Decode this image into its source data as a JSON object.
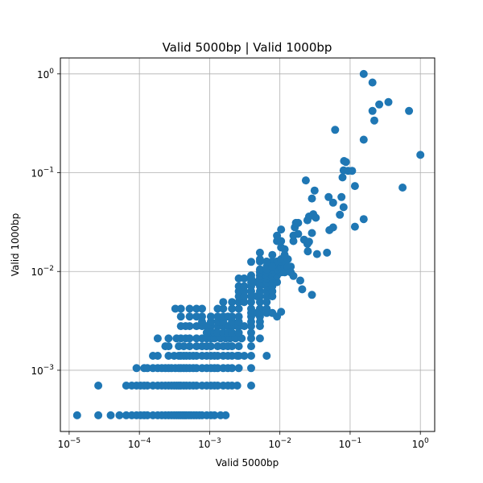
{
  "chart_data": {
    "type": "scatter",
    "title": "Valid 5000bp |  Valid 1000bp",
    "xlabel": "Valid 5000bp",
    "ylabel": "Valid 1000bp",
    "xscale": "log",
    "yscale": "log",
    "xlim": [
      7.5e-06,
      1.6
    ],
    "ylim": [
      0.00024,
      1.45
    ],
    "grid": true,
    "color": "#1f77b4",
    "xticks": [
      {
        "value": 1e-05,
        "base": "10",
        "exp": "−5"
      },
      {
        "value": 0.0001,
        "base": "10",
        "exp": "−4"
      },
      {
        "value": 0.001,
        "base": "10",
        "exp": "−3"
      },
      {
        "value": 0.01,
        "base": "10",
        "exp": "−2"
      },
      {
        "value": 0.1,
        "base": "10",
        "exp": "−1"
      },
      {
        "value": 1,
        "base": "10",
        "exp": "0"
      }
    ],
    "yticks": [
      {
        "value": 0.001,
        "base": "10",
        "exp": "−3"
      },
      {
        "value": 0.01,
        "base": "10",
        "exp": "−2"
      },
      {
        "value": 0.1,
        "base": "10",
        "exp": "−1"
      },
      {
        "value": 1,
        "base": "10",
        "exp": "0"
      }
    ],
    "points": [
      [
        1.3e-05,
        0.00035
      ],
      [
        2.6e-05,
        0.00035
      ],
      [
        2.6e-05,
        0.0007
      ],
      [
        3.9e-05,
        0.00035
      ],
      [
        5.2e-05,
        0.00035
      ],
      [
        6.5e-05,
        0.00035
      ],
      [
        7.8e-05,
        0.00035
      ],
      [
        9.1e-05,
        0.00035
      ],
      [
        0.000104,
        0.00035
      ],
      [
        0.000117,
        0.00035
      ],
      [
        0.00013,
        0.00035
      ],
      [
        0.000156,
        0.00035
      ],
      [
        0.000182,
        0.00035
      ],
      [
        0.000208,
        0.00035
      ],
      [
        0.000234,
        0.00035
      ],
      [
        0.00026,
        0.00035
      ],
      [
        0.000286,
        0.00035
      ],
      [
        0.000312,
        0.00035
      ],
      [
        0.000338,
        0.00035
      ],
      [
        0.000364,
        0.00035
      ],
      [
        0.00039,
        0.00035
      ],
      [
        0.000416,
        0.00035
      ],
      [
        0.000442,
        0.00035
      ],
      [
        0.000468,
        0.00035
      ],
      [
        0.000507,
        0.00035
      ],
      [
        0.000546,
        0.00035
      ],
      [
        0.000598,
        0.00035
      ],
      [
        0.00065,
        0.00035
      ],
      [
        0.000715,
        0.00035
      ],
      [
        0.00078,
        0.00035
      ],
      [
        0.00091,
        0.00035
      ],
      [
        0.00104,
        0.00035
      ],
      [
        0.00117,
        0.00035
      ],
      [
        0.00143,
        0.00035
      ],
      [
        0.00169,
        0.00035
      ],
      [
        6.5e-05,
        0.0007
      ],
      [
        7.8e-05,
        0.0007
      ],
      [
        9.1e-05,
        0.0007
      ],
      [
        0.000104,
        0.0007
      ],
      [
        0.000117,
        0.0007
      ],
      [
        0.00013,
        0.0007
      ],
      [
        0.000156,
        0.0007
      ],
      [
        0.000182,
        0.0007
      ],
      [
        0.000208,
        0.0007
      ],
      [
        0.000234,
        0.0007
      ],
      [
        0.00026,
        0.0007
      ],
      [
        0.000286,
        0.0007
      ],
      [
        0.000312,
        0.0007
      ],
      [
        0.000338,
        0.0007
      ],
      [
        0.000364,
        0.0007
      ],
      [
        0.00039,
        0.0007
      ],
      [
        0.000429,
        0.0007
      ],
      [
        0.000468,
        0.0007
      ],
      [
        0.00052,
        0.0007
      ],
      [
        0.000585,
        0.0007
      ],
      [
        0.00065,
        0.0007
      ],
      [
        0.00078,
        0.0007
      ],
      [
        0.00091,
        0.0007
      ],
      [
        0.00104,
        0.0007
      ],
      [
        0.00117,
        0.0007
      ],
      [
        0.0013,
        0.0007
      ],
      [
        0.00156,
        0.0007
      ],
      [
        0.00182,
        0.0007
      ],
      [
        0.00208,
        0.0007
      ],
      [
        0.00247,
        0.0007
      ],
      [
        0.0039,
        0.0007
      ],
      [
        9.1e-05,
        0.00105
      ],
      [
        0.000117,
        0.00105
      ],
      [
        0.00013,
        0.00105
      ],
      [
        0.000156,
        0.00105
      ],
      [
        0.000182,
        0.00105
      ],
      [
        0.000208,
        0.00105
      ],
      [
        0.000234,
        0.00105
      ],
      [
        0.00026,
        0.00105
      ],
      [
        0.000286,
        0.00105
      ],
      [
        0.000325,
        0.00105
      ],
      [
        0.000364,
        0.00105
      ],
      [
        0.00039,
        0.00105
      ],
      [
        0.000429,
        0.00105
      ],
      [
        0.000468,
        0.00105
      ],
      [
        0.00052,
        0.00105
      ],
      [
        0.000585,
        0.00105
      ],
      [
        0.00065,
        0.00105
      ],
      [
        0.00078,
        0.00105
      ],
      [
        0.00091,
        0.00105
      ],
      [
        0.00104,
        0.00105
      ],
      [
        0.00117,
        0.00105
      ],
      [
        0.0013,
        0.00105
      ],
      [
        0.00156,
        0.00105
      ],
      [
        0.00182,
        0.00105
      ],
      [
        0.00208,
        0.00105
      ],
      [
        0.0026,
        0.00105
      ],
      [
        0.0039,
        0.00105
      ],
      [
        0.000156,
        0.0014
      ],
      [
        0.000182,
        0.0014
      ],
      [
        0.00026,
        0.0014
      ],
      [
        0.000312,
        0.0014
      ],
      [
        0.000364,
        0.0014
      ],
      [
        0.00039,
        0.0014
      ],
      [
        0.000429,
        0.0014
      ],
      [
        0.000468,
        0.0014
      ],
      [
        0.00052,
        0.0014
      ],
      [
        0.000585,
        0.0014
      ],
      [
        0.00065,
        0.0014
      ],
      [
        0.00078,
        0.0014
      ],
      [
        0.00091,
        0.0014
      ],
      [
        0.00104,
        0.0014
      ],
      [
        0.00117,
        0.0014
      ],
      [
        0.0013,
        0.0014
      ],
      [
        0.00156,
        0.0014
      ],
      [
        0.00182,
        0.0014
      ],
      [
        0.00208,
        0.0014
      ],
      [
        0.00247,
        0.0014
      ],
      [
        0.0026,
        0.0014
      ],
      [
        0.00312,
        0.0014
      ],
      [
        0.0039,
        0.0014
      ],
      [
        0.0065,
        0.0014
      ],
      [
        0.000234,
        0.00175
      ],
      [
        0.00026,
        0.00175
      ],
      [
        0.000364,
        0.00175
      ],
      [
        0.000429,
        0.00175
      ],
      [
        0.00052,
        0.00175
      ],
      [
        0.00065,
        0.00175
      ],
      [
        0.00078,
        0.00175
      ],
      [
        0.00091,
        0.00175
      ],
      [
        0.00104,
        0.00175
      ],
      [
        0.0013,
        0.00175
      ],
      [
        0.00156,
        0.00175
      ],
      [
        0.00182,
        0.00175
      ],
      [
        0.00208,
        0.00175
      ],
      [
        0.0026,
        0.00175
      ],
      [
        0.0039,
        0.00175
      ],
      [
        0.000182,
        0.0021
      ],
      [
        0.00026,
        0.0021
      ],
      [
        0.000338,
        0.0021
      ],
      [
        0.00039,
        0.0021
      ],
      [
        0.000455,
        0.0021
      ],
      [
        0.00052,
        0.0021
      ],
      [
        0.00065,
        0.0021
      ],
      [
        0.00078,
        0.0021
      ],
      [
        0.00091,
        0.0021
      ],
      [
        0.00104,
        0.0021
      ],
      [
        0.00117,
        0.0021
      ],
      [
        0.00143,
        0.0021
      ],
      [
        0.00169,
        0.0021
      ],
      [
        0.00195,
        0.0021
      ],
      [
        0.00234,
        0.0021
      ],
      [
        0.00286,
        0.0021
      ],
      [
        0.0039,
        0.0021
      ],
      [
        0.0052,
        0.0021
      ],
      [
        0.00039,
        0.0028
      ],
      [
        0.000455,
        0.0028
      ],
      [
        0.00052,
        0.0028
      ],
      [
        0.00065,
        0.0028
      ],
      [
        0.00078,
        0.0028
      ],
      [
        0.00091,
        0.0028
      ],
      [
        0.00104,
        0.0028
      ],
      [
        0.0013,
        0.0028
      ],
      [
        0.00156,
        0.0028
      ],
      [
        0.00182,
        0.0028
      ],
      [
        0.00208,
        0.0028
      ],
      [
        0.00247,
        0.0028
      ],
      [
        0.0026,
        0.0028
      ],
      [
        0.00312,
        0.0028
      ],
      [
        0.0039,
        0.0028
      ],
      [
        0.0052,
        0.0028
      ],
      [
        0.00104,
        0.0024
      ],
      [
        0.00117,
        0.0024
      ],
      [
        0.0013,
        0.0024
      ],
      [
        0.00156,
        0.0024
      ],
      [
        0.00182,
        0.0024
      ],
      [
        0.00208,
        0.0024
      ],
      [
        0.0026,
        0.0024
      ],
      [
        0.0039,
        0.0024
      ],
      [
        0.00091,
        0.0024
      ],
      [
        0.00078,
        0.0031
      ],
      [
        0.00104,
        0.0031
      ],
      [
        0.0013,
        0.0031
      ],
      [
        0.00156,
        0.0031
      ],
      [
        0.00208,
        0.0031
      ],
      [
        0.0026,
        0.0031
      ],
      [
        0.0039,
        0.0031
      ],
      [
        0.0052,
        0.0031
      ],
      [
        0.00039,
        0.0035
      ],
      [
        0.00052,
        0.0035
      ],
      [
        0.00065,
        0.0035
      ],
      [
        0.00078,
        0.0035
      ],
      [
        0.00104,
        0.0035
      ],
      [
        0.0013,
        0.0035
      ],
      [
        0.00156,
        0.0035
      ],
      [
        0.00182,
        0.0035
      ],
      [
        0.00208,
        0.0035
      ],
      [
        0.0026,
        0.0035
      ],
      [
        0.0039,
        0.0035
      ],
      [
        0.0052,
        0.0035
      ],
      [
        0.000325,
        0.0042
      ],
      [
        0.00039,
        0.0042
      ],
      [
        0.00052,
        0.0042
      ],
      [
        0.00065,
        0.0042
      ],
      [
        0.00078,
        0.0042
      ],
      [
        0.0013,
        0.0042
      ],
      [
        0.00156,
        0.0042
      ],
      [
        0.00208,
        0.0042
      ],
      [
        0.0026,
        0.0042
      ],
      [
        0.0039,
        0.0042
      ],
      [
        0.0052,
        0.0042
      ],
      [
        0.0065,
        0.0042
      ],
      [
        0.0039,
        0.0038
      ],
      [
        0.0052,
        0.0038
      ],
      [
        0.0065,
        0.0038
      ],
      [
        0.0078,
        0.0038
      ],
      [
        0.0047,
        0.0038
      ],
      [
        0.0091,
        0.0035
      ],
      [
        0.0104,
        0.0039
      ],
      [
        0.00156,
        0.0049
      ],
      [
        0.00208,
        0.0049
      ],
      [
        0.0026,
        0.0049
      ],
      [
        0.0031,
        0.0049
      ],
      [
        0.0039,
        0.0049
      ],
      [
        0.0052,
        0.0049
      ],
      [
        0.0065,
        0.0049
      ],
      [
        0.0026,
        0.0056
      ],
      [
        0.0031,
        0.0056
      ],
      [
        0.0039,
        0.0056
      ],
      [
        0.0047,
        0.0056
      ],
      [
        0.0052,
        0.0056
      ],
      [
        0.0065,
        0.0056
      ],
      [
        0.0078,
        0.0056
      ],
      [
        0.0026,
        0.0063
      ],
      [
        0.0031,
        0.0063
      ],
      [
        0.0039,
        0.0063
      ],
      [
        0.0052,
        0.0063
      ],
      [
        0.0065,
        0.0063
      ],
      [
        0.0078,
        0.0063
      ],
      [
        0.0026,
        0.0071
      ],
      [
        0.0031,
        0.0071
      ],
      [
        0.0039,
        0.0071
      ],
      [
        0.0052,
        0.0071
      ],
      [
        0.0065,
        0.0071
      ],
      [
        0.0078,
        0.0071
      ],
      [
        0.0039,
        0.0078
      ],
      [
        0.0047,
        0.0078
      ],
      [
        0.0052,
        0.0078
      ],
      [
        0.0065,
        0.0078
      ],
      [
        0.0078,
        0.0078
      ],
      [
        0.0091,
        0.0078
      ],
      [
        0.0026,
        0.0085
      ],
      [
        0.0031,
        0.0085
      ],
      [
        0.0039,
        0.0085
      ],
      [
        0.0052,
        0.0085
      ],
      [
        0.0065,
        0.0085
      ],
      [
        0.0078,
        0.0085
      ],
      [
        0.0039,
        0.0091
      ],
      [
        0.0052,
        0.0091
      ],
      [
        0.0065,
        0.0091
      ],
      [
        0.0078,
        0.0091
      ],
      [
        0.0091,
        0.0091
      ],
      [
        0.0052,
        0.0098
      ],
      [
        0.0065,
        0.0098
      ],
      [
        0.0078,
        0.0098
      ],
      [
        0.0104,
        0.0098
      ],
      [
        0.0117,
        0.0098
      ],
      [
        0.0052,
        0.0105
      ],
      [
        0.0065,
        0.0105
      ],
      [
        0.0078,
        0.0105
      ],
      [
        0.0091,
        0.0105
      ],
      [
        0.0065,
        0.0112
      ],
      [
        0.0078,
        0.0112
      ],
      [
        0.0091,
        0.0112
      ],
      [
        0.0104,
        0.0112
      ],
      [
        0.0117,
        0.0112
      ],
      [
        0.013,
        0.0112
      ],
      [
        0.0143,
        0.0112
      ],
      [
        0.0078,
        0.0126
      ],
      [
        0.0091,
        0.0126
      ],
      [
        0.0104,
        0.0126
      ],
      [
        0.0117,
        0.0126
      ],
      [
        0.0052,
        0.0126
      ],
      [
        0.0065,
        0.0126
      ],
      [
        0.0039,
        0.0084
      ],
      [
        0.0104,
        0.0133
      ],
      [
        0.013,
        0.0133
      ],
      [
        0.0117,
        0.0147
      ],
      [
        0.0078,
        0.0147
      ],
      [
        0.0117,
        0.0168
      ],
      [
        0.0052,
        0.0155
      ],
      [
        0.0104,
        0.0175
      ],
      [
        0.0091,
        0.0203
      ],
      [
        0.0104,
        0.0203
      ],
      [
        0.0104,
        0.0266
      ],
      [
        0.0091,
        0.023
      ],
      [
        0.0156,
        0.0203
      ],
      [
        0.0156,
        0.0231
      ],
      [
        0.0182,
        0.024
      ],
      [
        0.0163,
        0.028
      ],
      [
        0.0169,
        0.031
      ],
      [
        0.0182,
        0.031
      ],
      [
        0.0221,
        0.021
      ],
      [
        0.0247,
        0.019
      ],
      [
        0.026,
        0.02
      ],
      [
        0.0247,
        0.033
      ],
      [
        0.0286,
        0.0245
      ],
      [
        0.026,
        0.036
      ],
      [
        0.0299,
        0.038
      ],
      [
        0.0325,
        0.035
      ],
      [
        0.0039,
        0.0125
      ],
      [
        0.0052,
        0.0133
      ],
      [
        0.0065,
        0.0105
      ],
      [
        0.0078,
        0.0112
      ],
      [
        0.013,
        0.0112
      ],
      [
        0.0143,
        0.0098
      ],
      [
        0.0156,
        0.009
      ],
      [
        0.0195,
        0.0081
      ],
      [
        0.0208,
        0.0066
      ],
      [
        0.0286,
        0.0058
      ],
      [
        0.025,
        0.016
      ],
      [
        0.0338,
        0.015
      ],
      [
        0.0468,
        0.0155
      ],
      [
        0.0507,
        0.0262
      ],
      [
        0.0572,
        0.0279
      ],
      [
        0.0715,
        0.0375
      ],
      [
        0.0806,
        0.0447
      ],
      [
        0.0234,
        0.0835
      ],
      [
        0.0286,
        0.0548
      ],
      [
        0.0312,
        0.066
      ],
      [
        0.0494,
        0.0566
      ],
      [
        0.0572,
        0.0497
      ],
      [
        0.0754,
        0.0566
      ],
      [
        0.078,
        0.0896
      ],
      [
        0.0806,
        0.1057
      ],
      [
        0.0819,
        0.1313
      ],
      [
        0.0871,
        0.1284
      ],
      [
        0.0936,
        0.1044
      ],
      [
        0.1066,
        0.1044
      ],
      [
        0.117,
        0.0733
      ],
      [
        0.117,
        0.0284
      ],
      [
        0.156,
        0.0339
      ],
      [
        0.0611,
        0.2712
      ],
      [
        0.156,
        0.2158
      ],
      [
        0.156,
        0.9979
      ],
      [
        0.208,
        0.4218
      ],
      [
        0.221,
        0.3372
      ],
      [
        0.26,
        0.4898
      ],
      [
        0.351,
        0.5184
      ],
      [
        0.559,
        0.0707
      ],
      [
        0.208,
        0.8186
      ],
      [
        0.689,
        0.4218
      ],
      [
        1.0,
        0.1515
      ]
    ]
  }
}
